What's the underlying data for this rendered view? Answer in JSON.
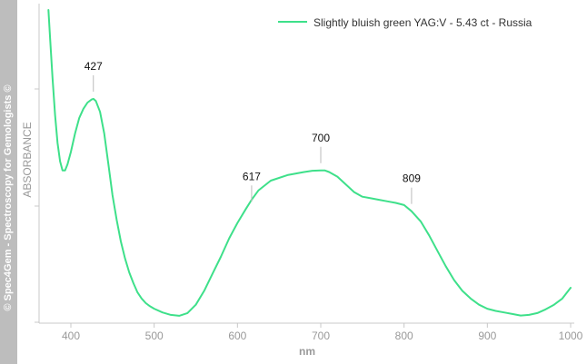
{
  "watermark": "© Spec4Gem - Spectroscopy for Gemologists ©",
  "chart_data": {
    "type": "line",
    "xlabel": "nm",
    "ylabel": "ABSORBANCE",
    "xlim": [
      370,
      1000
    ],
    "x_ticks": [
      400,
      500,
      600,
      700,
      800,
      900,
      1000
    ],
    "grid": false,
    "legend_position": "top-right",
    "series": [
      {
        "name": "Slightly bluish green YAG:V - 5.43 ct - Russia",
        "color": "#3ee08a",
        "x": [
          373,
          375,
          378,
          381,
          384,
          387,
          390,
          393,
          396,
          400,
          405,
          410,
          415,
          420,
          425,
          427,
          430,
          435,
          440,
          445,
          450,
          455,
          460,
          465,
          470,
          475,
          480,
          485,
          490,
          495,
          500,
          510,
          520,
          530,
          540,
          550,
          560,
          570,
          580,
          590,
          600,
          610,
          617,
          625,
          640,
          660,
          680,
          690,
          700,
          705,
          710,
          720,
          730,
          740,
          750,
          760,
          770,
          780,
          790,
          800,
          809,
          820,
          830,
          840,
          850,
          860,
          870,
          880,
          890,
          900,
          910,
          920,
          930,
          940,
          950,
          960,
          970,
          980,
          990,
          1000
        ],
        "y": [
          100,
          91,
          78,
          66,
          57,
          51,
          48,
          48,
          50,
          54,
          60,
          65,
          68,
          70,
          71,
          71.2,
          70.5,
          67,
          60,
          50,
          40,
          32,
          25,
          19.5,
          15,
          11.5,
          8.5,
          6.5,
          5,
          4,
          3.2,
          2,
          1.2,
          0.9,
          1.8,
          4.5,
          9,
          14.5,
          20,
          26,
          31,
          35.5,
          38.5,
          41.5,
          44.7,
          46.5,
          47.5,
          47.9,
          48,
          48,
          47.5,
          46,
          43.5,
          41,
          39.5,
          39,
          38.5,
          38,
          37.5,
          36.8,
          34.8,
          31.5,
          27,
          22,
          17,
          12.5,
          9,
          6.5,
          4.5,
          3.2,
          2.5,
          2,
          1.5,
          1,
          1.2,
          1.8,
          3,
          4.5,
          6.5,
          10
        ]
      }
    ],
    "annotations": [
      {
        "label": "427",
        "x": 427,
        "y": 71.2
      },
      {
        "label": "617",
        "x": 617,
        "y": 35.5
      },
      {
        "label": "700",
        "x": 700,
        "y": 48
      },
      {
        "label": "809",
        "x": 809,
        "y": 34.8
      }
    ]
  }
}
